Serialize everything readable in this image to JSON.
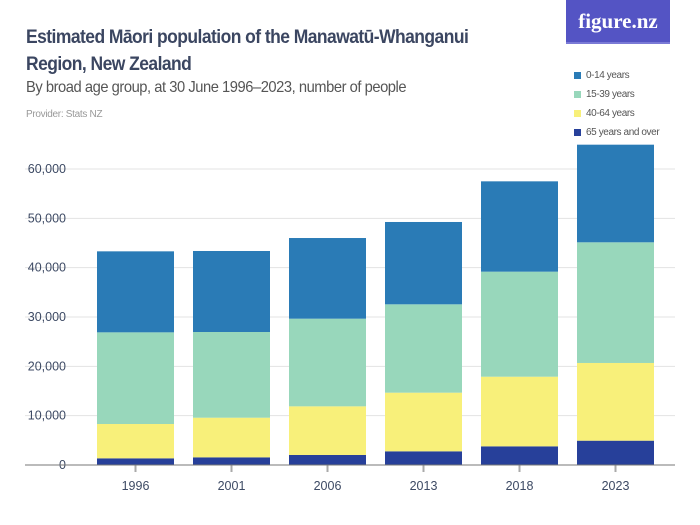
{
  "title": "Estimated Māori population of the Manawatū-Whanganui Region, New Zealand",
  "subtitle": "By broad age group, at 30 June 1996–2023, number of people",
  "provider": "Provider: Stats NZ",
  "logo_text": "figure.nz",
  "chart_data": {
    "type": "bar",
    "stacked": true,
    "title": "Estimated Māori population of the Manawatū-Whanganui Region, New Zealand",
    "subtitle": "By broad age group, at 30 June 1996–2023, number of people",
    "xlabel": "",
    "ylabel": "",
    "ylim": [
      0,
      65000
    ],
    "yticks": [
      "0",
      "10,000",
      "20,000",
      "30,000",
      "40,000",
      "50,000",
      "60,000"
    ],
    "ytick_values": [
      0,
      10000,
      20000,
      30000,
      40000,
      50000,
      60000
    ],
    "grid": true,
    "legend_position": "top-right",
    "categories": [
      "1996",
      "2001",
      "2006",
      "2013",
      "2018",
      "2023"
    ],
    "series": [
      {
        "name": "65 years and over",
        "color": "#27409a",
        "values": [
          1350,
          1550,
          2030,
          2770,
          3780,
          4930
        ]
      },
      {
        "name": "40-64 years",
        "color": "#f8f07a",
        "values": [
          6960,
          8040,
          9860,
          11890,
          14120,
          15750
        ]
      },
      {
        "name": "15-39 years",
        "color": "#98d7bb",
        "values": [
          18580,
          17370,
          17770,
          17910,
          21290,
          24460
        ]
      },
      {
        "name": "0-14 years",
        "color": "#2a7bb6",
        "values": [
          16420,
          16420,
          16350,
          16690,
          18310,
          19790
        ]
      }
    ],
    "legend_order": [
      "0-14 years",
      "15-39 years",
      "40-64 years",
      "65 years and over"
    ]
  }
}
